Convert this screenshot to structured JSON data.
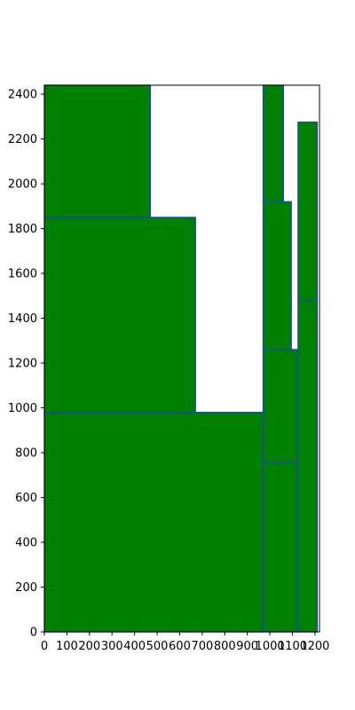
{
  "chart_data": {
    "type": "rectangles",
    "title": "",
    "xlabel": "",
    "ylabel": "",
    "xlim": [
      0,
      1220
    ],
    "ylim": [
      0,
      2440
    ],
    "grid": false,
    "colors": {
      "fill": "#008000",
      "edge": "#1f3fbf",
      "axis": "#000000"
    },
    "x_ticks": [
      0,
      100,
      200,
      300,
      400,
      500,
      600,
      700,
      800,
      900,
      1000,
      1100,
      1200
    ],
    "y_ticks": [
      0,
      200,
      400,
      600,
      800,
      1000,
      1200,
      1400,
      1600,
      1800,
      2000,
      2200,
      2400
    ],
    "rects": [
      {
        "x": 0,
        "y": 0,
        "w": 970,
        "h": 980
      },
      {
        "x": 0,
        "y": 980,
        "w": 670,
        "h": 870
      },
      {
        "x": 0,
        "y": 1850,
        "w": 470,
        "h": 590
      },
      {
        "x": 970,
        "y": 0,
        "w": 155,
        "h": 755
      },
      {
        "x": 970,
        "y": 755,
        "w": 155,
        "h": 505
      },
      {
        "x": 970,
        "y": 1260,
        "w": 125,
        "h": 660
      },
      {
        "x": 970,
        "y": 1920,
        "w": 90,
        "h": 520
      },
      {
        "x": 1125,
        "y": 0,
        "w": 85,
        "h": 1480
      },
      {
        "x": 1125,
        "y": 1480,
        "w": 85,
        "h": 795
      }
    ]
  }
}
